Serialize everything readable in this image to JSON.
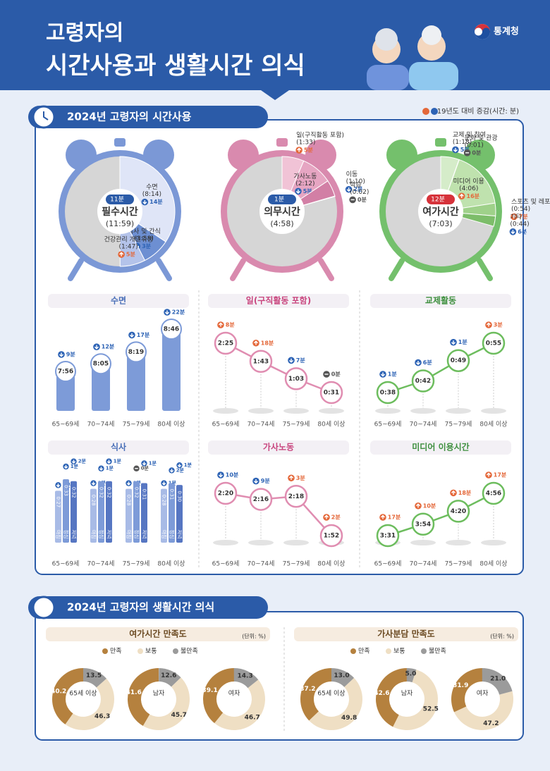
{
  "header": {
    "title_line1": "고령자의",
    "title_line2": "시간사용과 생활시간 의식",
    "agency": "통계청"
  },
  "section1": {
    "title": "2024년 고령자의 시간사용",
    "note": "'19년도 대비 증감(시간: 분)",
    "clocks": [
      {
        "name": "필수시간",
        "total": 719,
        "total_label": "(11:59)",
        "change": {
          "label": "11분",
          "dir": "down"
        },
        "color": "#7b98d6",
        "segments": [
          {
            "name": "수면",
            "value": 494,
            "value_label": "(8:14)",
            "change": {
              "label": "14분",
              "dir": "down"
            },
            "color": "#dfe5f7"
          },
          {
            "name": "식사 및 간식",
            "value": 118,
            "value_label": "(1:58)",
            "change": {
              "label": "3분",
              "dir": "down"
            },
            "color": "#6d8fd2"
          },
          {
            "name": "건강관리 개인위생",
            "value": 107,
            "value_label": "(1:47)",
            "change": {
              "label": "5분",
              "dir": "up"
            },
            "color": "#b4c3ea"
          }
        ]
      },
      {
        "name": "의무시간",
        "total": 298,
        "total_label": "(4:58)",
        "change": {
          "label": "1분",
          "dir": "down"
        },
        "color": "#d98aae",
        "segments": [
          {
            "name": "일(구직활동 포함)",
            "value": 93,
            "value_label": "(1:33)",
            "change": {
              "label": "5분",
              "dir": "up"
            },
            "color": "#f1c3d6"
          },
          {
            "name": "가사노동",
            "value": 132,
            "value_label": "(2:12)",
            "change": {
              "label": "5분",
              "dir": "down"
            },
            "color": "#e6a5c2"
          },
          {
            "name": "이동",
            "value": 70,
            "value_label": "(1:10)",
            "change": {
              "label": "2분",
              "dir": "down"
            },
            "color": "#d27fa5"
          },
          {
            "name": "학습",
            "value": 2,
            "value_label": "(0:02)",
            "change": {
              "label": "0분",
              "dir": "flat"
            },
            "color": "#b85b86"
          }
        ]
      },
      {
        "name": "여가시간",
        "total": 423,
        "total_label": "(7:03)",
        "change": {
          "label": "12분",
          "dir": "up"
        },
        "color": "#74c06c",
        "segments": [
          {
            "name": "교제 및 참여",
            "value": 78,
            "value_label": "(1:18)",
            "change": {
              "label": "5분",
              "dir": "down"
            },
            "color": "#d5ecc9"
          },
          {
            "name": "문화 및 관광",
            "value": 1,
            "value_label": "(0:01)",
            "change": {
              "label": "0분",
              "dir": "flat"
            },
            "color": "#4f9c45"
          },
          {
            "name": "미디어 이용",
            "value": 246,
            "value_label": "(4:06)",
            "change": {
              "label": "16분",
              "dir": "up"
            },
            "color": "#bfe2ae"
          },
          {
            "name": "스포츠 및 레포츠",
            "value": 54,
            "value_label": "(0:54)",
            "change": {
              "label": "7분",
              "dir": "up"
            },
            "color": "#9fd18a"
          },
          {
            "name": "기타",
            "value": 44,
            "value_label": "(0:44)",
            "change": {
              "label": "6분",
              "dir": "down"
            },
            "color": "#7dbd6a"
          }
        ]
      }
    ]
  },
  "chart_data": [
    {
      "type": "bar",
      "title": "수면",
      "color": "#7d9bd8",
      "title_color": "#4a6fb8",
      "categories": [
        "65~69세",
        "70~74세",
        "75~79세",
        "80세 이상"
      ],
      "values": [
        476,
        485,
        499,
        526
      ],
      "value_labels": [
        "7:56",
        "8:05",
        "8:19",
        "8:46"
      ],
      "changes": [
        {
          "label": "9분",
          "dir": "down"
        },
        {
          "label": "12분",
          "dir": "down"
        },
        {
          "label": "17분",
          "dir": "down"
        },
        {
          "label": "22분",
          "dir": "down"
        }
      ]
    },
    {
      "type": "line",
      "title": "일(구직활동 포함)",
      "color": "#e08db1",
      "title_color": "#c9467f",
      "categories": [
        "65~69세",
        "70~74세",
        "75~79세",
        "80세 이상"
      ],
      "values": [
        145,
        103,
        63,
        31
      ],
      "value_labels": [
        "2:25",
        "1:43",
        "1:03",
        "0:31"
      ],
      "changes": [
        {
          "label": "8분",
          "dir": "up"
        },
        {
          "label": "18분",
          "dir": "up"
        },
        {
          "label": "7분",
          "dir": "down"
        },
        {
          "label": "0분",
          "dir": "flat"
        }
      ]
    },
    {
      "type": "line",
      "title": "교제활동",
      "color": "#6dbd5e",
      "title_color": "#3e8f3e",
      "categories": [
        "65~69세",
        "70~74세",
        "75~79세",
        "80세 이상"
      ],
      "values": [
        38,
        42,
        49,
        55
      ],
      "value_labels": [
        "0:38",
        "0:42",
        "0:49",
        "0:55"
      ],
      "changes": [
        {
          "label": "1분",
          "dir": "down"
        },
        {
          "label": "6분",
          "dir": "down"
        },
        {
          "label": "1분",
          "dir": "down"
        },
        {
          "label": "3분",
          "dir": "up"
        }
      ]
    },
    {
      "type": "grouped_bar",
      "title": "식사",
      "title_color": "#4a6fb8",
      "categories": [
        "65~69세",
        "70~74세",
        "75~79세",
        "80세 이상"
      ],
      "series": [
        {
          "name": "아침",
          "color": "#a8bbe6",
          "values": [
            27,
            28,
            28,
            28
          ],
          "value_labels": [
            "0:27",
            "0:28",
            "0:28",
            "0:28"
          ],
          "changes": [
            {
              "label": "1분",
              "dir": "down"
            },
            {
              "label": "1분",
              "dir": "down"
            },
            {
              "label": "1분",
              "dir": "down"
            },
            {
              "label": "1분",
              "dir": "down"
            }
          ]
        },
        {
          "name": "점심",
          "color": "#7d9bd8",
          "values": [
            33,
            32,
            32,
            31
          ],
          "value_labels": [
            "0:33",
            "0:32",
            "0:32",
            "0:31"
          ],
          "changes": [
            {
              "label": "1분",
              "dir": "down"
            },
            {
              "label": "1분",
              "dir": "down"
            },
            {
              "label": "0분",
              "dir": "flat"
            },
            {
              "label": "2분",
              "dir": "down"
            }
          ]
        },
        {
          "name": "저녁",
          "color": "#5676c2",
          "values": [
            32,
            32,
            31,
            30
          ],
          "value_labels": [
            "0:32",
            "0:32",
            "0:31",
            "0:30"
          ],
          "changes": [
            {
              "label": "2분",
              "dir": "down"
            },
            {
              "label": "1분",
              "dir": "down"
            },
            {
              "label": "1분",
              "dir": "down"
            },
            {
              "label": "1분",
              "dir": "down"
            }
          ]
        }
      ]
    },
    {
      "type": "line",
      "title": "가사노동",
      "color": "#e08db1",
      "title_color": "#c9467f",
      "categories": [
        "65~69세",
        "70~74세",
        "75~79세",
        "80세 이상"
      ],
      "values": [
        140,
        136,
        138,
        112
      ],
      "value_labels": [
        "2:20",
        "2:16",
        "2:18",
        "1:52"
      ],
      "changes": [
        {
          "label": "10분",
          "dir": "down"
        },
        {
          "label": "9분",
          "dir": "down"
        },
        {
          "label": "3분",
          "dir": "up"
        },
        {
          "label": "2분",
          "dir": "up"
        }
      ]
    },
    {
      "type": "line",
      "title": "미디어 이용시간",
      "color": "#6dbd5e",
      "title_color": "#3e8f3e",
      "categories": [
        "65~69세",
        "70~74세",
        "75~79세",
        "80세 이상"
      ],
      "values": [
        211,
        234,
        260,
        296
      ],
      "value_labels": [
        "3:31",
        "3:54",
        "4:20",
        "4:56"
      ],
      "changes": [
        {
          "label": "17분",
          "dir": "up"
        },
        {
          "label": "10분",
          "dir": "up"
        },
        {
          "label": "18분",
          "dir": "up"
        },
        {
          "label": "17분",
          "dir": "up"
        }
      ]
    },
    {
      "type": "donut",
      "title": "여가시간 만족도",
      "unit": "(단위: %)",
      "categories": [
        "65세 이상",
        "남자",
        "여자"
      ],
      "series": [
        {
          "name": "만족",
          "color": "#b5813e",
          "values": [
            40.2,
            41.6,
            39.1
          ],
          "value_labels": [
            "40.2",
            "41.6",
            "39.1"
          ]
        },
        {
          "name": "보통",
          "color": "#efdfc4",
          "values": [
            46.3,
            45.7,
            46.7
          ],
          "value_labels": [
            "46.3",
            "45.7",
            "46.7"
          ]
        },
        {
          "name": "불만족",
          "color": "#9b9b9b",
          "values": [
            13.5,
            12.6,
            14.3
          ],
          "value_labels": [
            "13.5",
            "12.6",
            "14.3"
          ]
        }
      ]
    },
    {
      "type": "donut",
      "title": "가사분담 만족도",
      "unit": "(단위: %)",
      "categories": [
        "65세 이상",
        "남자",
        "여자"
      ],
      "series": [
        {
          "name": "만족",
          "color": "#b5813e",
          "values": [
            37.2,
            42.6,
            31.9
          ],
          "value_labels": [
            "37.2",
            "42.6",
            "31.9"
          ]
        },
        {
          "name": "보통",
          "color": "#efdfc4",
          "values": [
            49.8,
            52.5,
            47.2
          ],
          "value_labels": [
            "49.8",
            "52.5",
            "47.2"
          ]
        },
        {
          "name": "불만족",
          "color": "#9b9b9b",
          "values": [
            13.0,
            5.0,
            21.0
          ],
          "value_labels": [
            "13.0",
            "5.0",
            "21.0"
          ]
        }
      ]
    }
  ],
  "section2": {
    "title": "2024년 고령자의 생활시간 의식"
  }
}
